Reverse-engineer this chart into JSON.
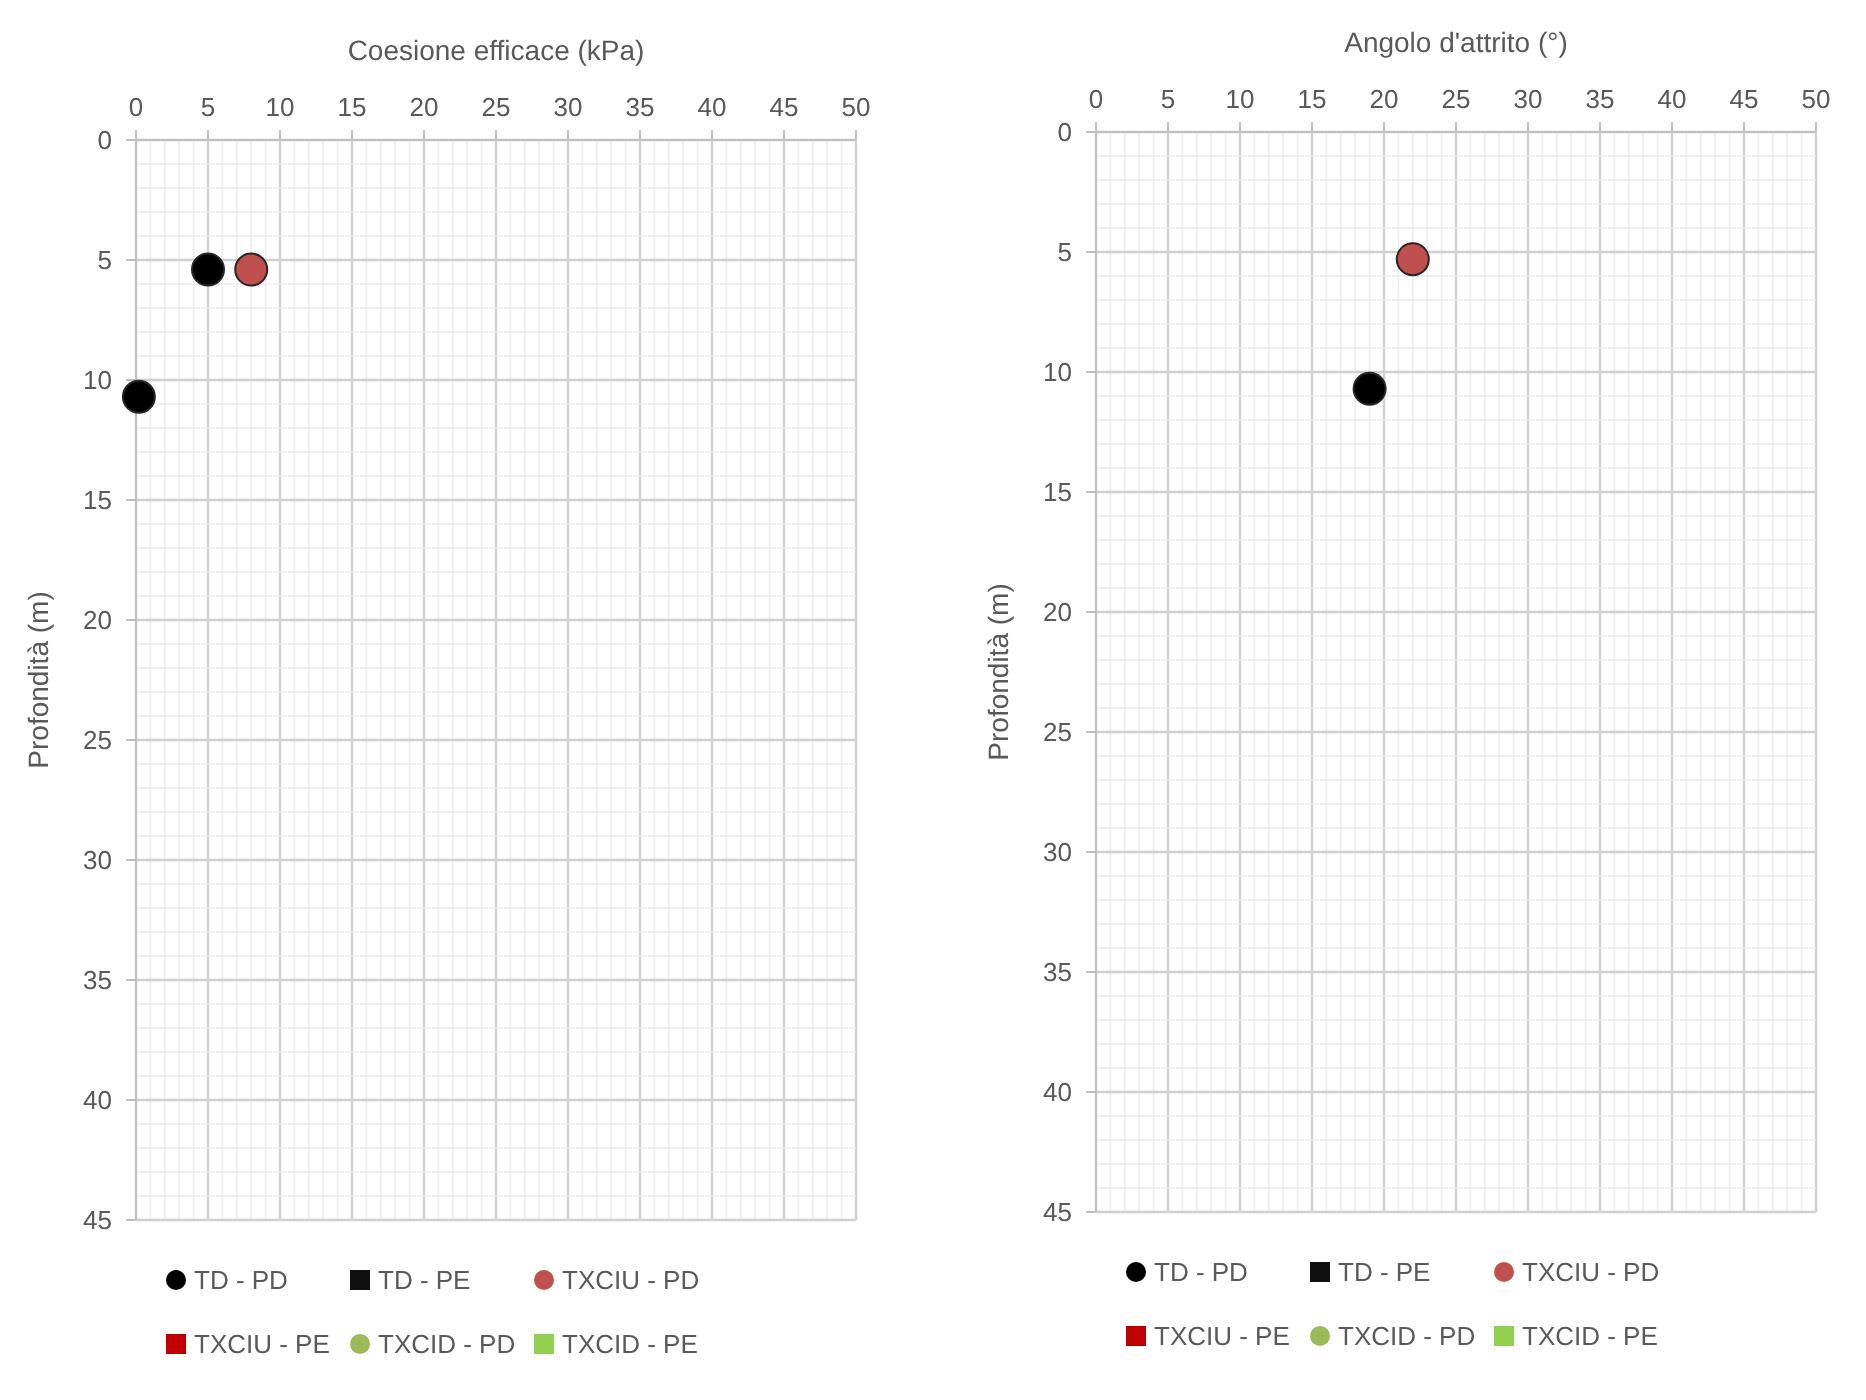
{
  "chart_data": [
    {
      "type": "scatter",
      "xlabel": "Coesione  efficace (kPa)",
      "ylabel": "Profondità (m)",
      "xlim": [
        0,
        50
      ],
      "ylim": [
        45,
        0
      ],
      "xticks": [
        0,
        {
          "value": 1,
          "label": null
        },
        {
          "value": 2,
          "label": null
        },
        {
          "value": 3,
          "label": null
        },
        {
          "value": 4,
          "label": null
        },
        5,
        {
          "value": 6,
          "label": null
        },
        {
          "value": 7,
          "label": null
        },
        {
          "value": 8,
          "label": null
        },
        {
          "value": 9,
          "label": null
        },
        10,
        {
          "value": 11,
          "label": null
        },
        {
          "value": 12,
          "label": null
        },
        {
          "value": 13,
          "label": null
        },
        {
          "value": 14,
          "label": null
        },
        15,
        {
          "value": 16,
          "label": null
        },
        {
          "value": 17,
          "label": null
        },
        {
          "value": 18,
          "label": null
        },
        {
          "value": 19,
          "label": null
        },
        20,
        {
          "value": 21,
          "label": null
        },
        {
          "value": 22,
          "label": null
        },
        {
          "value": 23,
          "label": null
        },
        {
          "value": 24,
          "label": null
        },
        25,
        {
          "value": 26,
          "label": null
        },
        {
          "value": 27,
          "label": null
        },
        {
          "value": 28,
          "label": null
        },
        {
          "value": 29,
          "label": null
        },
        30,
        {
          "value": 31,
          "label": null
        },
        {
          "value": 32,
          "label": null
        },
        {
          "value": 33,
          "label": null
        },
        {
          "value": 34,
          "label": null
        },
        35,
        {
          "value": 36,
          "label": null
        },
        {
          "value": 37,
          "label": null
        },
        {
          "value": 38,
          "label": null
        },
        {
          "value": 39,
          "label": null
        },
        40,
        {
          "value": 41,
          "label": null
        },
        {
          "value": 42,
          "label": null
        },
        {
          "value": 43,
          "label": null
        },
        {
          "value": 44,
          "label": null
        },
        45,
        {
          "value": 46,
          "label": null
        },
        {
          "value": 47,
          "label": null
        },
        {
          "value": 48,
          "label": null
        },
        {
          "value": 49,
          "label": null
        },
        50
      ],
      "yticks": [
        0,
        {
          "value": 1,
          "label": null
        },
        {
          "value": 2,
          "label": null
        },
        {
          "value": 3,
          "label": null
        },
        {
          "value": 4,
          "label": null
        },
        5,
        {
          "value": 6,
          "label": null
        },
        {
          "value": 7,
          "label": null
        },
        {
          "value": 8,
          "label": null
        },
        {
          "value": 9,
          "label": null
        },
        10,
        {
          "value": 11,
          "label": null
        },
        {
          "value": 12,
          "label": null
        },
        {
          "value": 13,
          "label": null
        },
        {
          "value": 14,
          "label": null
        },
        15,
        {
          "value": 16,
          "label": null
        },
        {
          "value": 17,
          "label": null
        },
        {
          "value": 18,
          "label": null
        },
        {
          "value": 19,
          "label": null
        },
        20,
        {
          "value": 21,
          "label": null
        },
        {
          "value": 22,
          "label": null
        },
        {
          "value": 23,
          "label": null
        },
        {
          "value": 24,
          "label": null
        },
        25,
        {
          "value": 26,
          "label": null
        },
        {
          "value": 27,
          "label": null
        },
        {
          "value": 28,
          "label": null
        },
        {
          "value": 29,
          "label": null
        },
        30,
        {
          "value": 31,
          "label": null
        },
        {
          "value": 32,
          "label": null
        },
        {
          "value": 33,
          "label": null
        },
        {
          "value": 34,
          "label": null
        },
        35,
        {
          "value": 36,
          "label": null
        },
        {
          "value": 37,
          "label": null
        },
        {
          "value": 38,
          "label": null
        },
        {
          "value": 39,
          "label": null
        },
        40,
        {
          "value": 41,
          "label": null
        },
        {
          "value": 42,
          "label": null
        },
        {
          "value": 43,
          "label": null
        },
        {
          "value": 44,
          "label": null
        },
        45
      ],
      "grid": true,
      "legend": "bottom",
      "series": [
        {
          "name": "TD - PD",
          "color": "#000000",
          "marker": "circle",
          "x": [
            5,
            0.2
          ],
          "values": [
            5.4,
            10.7
          ]
        },
        {
          "name": "TD - PE",
          "color": "#111111",
          "marker": "square"
        },
        {
          "name": "TXCIU - PD",
          "color": "#c0504d",
          "marker": "circle",
          "x": [
            8
          ],
          "values": [
            5.4
          ]
        },
        {
          "name": "TXCIU - PE",
          "color": "#c00000",
          "marker": "square"
        },
        {
          "name": "TXCID - PD",
          "color": "#9bbb59",
          "marker": "circle"
        },
        {
          "name": "TXCID - PE",
          "color": "#92d050",
          "marker": "square"
        }
      ]
    },
    {
      "type": "scatter",
      "xlabel": "Angolo d'attrito (°)",
      "ylabel": "Profondità (m)",
      "xlim": [
        0,
        50
      ],
      "ylim": [
        45,
        0
      ],
      "xticks": [
        0,
        {
          "value": 1,
          "label": null
        },
        {
          "value": 2,
          "label": null
        },
        {
          "value": 3,
          "label": null
        },
        {
          "value": 4,
          "label": null
        },
        5,
        {
          "value": 6,
          "label": null
        },
        {
          "value": 7,
          "label": null
        },
        {
          "value": 8,
          "label": null
        },
        {
          "value": 9,
          "label": null
        },
        10,
        {
          "value": 11,
          "label": null
        },
        {
          "value": 12,
          "label": null
        },
        {
          "value": 13,
          "label": null
        },
        {
          "value": 14,
          "label": null
        },
        15,
        {
          "value": 16,
          "label": null
        },
        {
          "value": 17,
          "label": null
        },
        {
          "value": 18,
          "label": null
        },
        {
          "value": 19,
          "label": null
        },
        20,
        {
          "value": 21,
          "label": null
        },
        {
          "value": 22,
          "label": null
        },
        {
          "value": 23,
          "label": null
        },
        {
          "value": 24,
          "label": null
        },
        25,
        {
          "value": 26,
          "label": null
        },
        {
          "value": 27,
          "label": null
        },
        {
          "value": 28,
          "label": null
        },
        {
          "value": 29,
          "label": null
        },
        30,
        {
          "value": 31,
          "label": null
        },
        {
          "value": 32,
          "label": null
        },
        {
          "value": 33,
          "label": null
        },
        {
          "value": 34,
          "label": null
        },
        35,
        {
          "value": 36,
          "label": null
        },
        {
          "value": 37,
          "label": null
        },
        {
          "value": 38,
          "label": null
        },
        {
          "value": 39,
          "label": null
        },
        40,
        {
          "value": 41,
          "label": null
        },
        {
          "value": 42,
          "label": null
        },
        {
          "value": 43,
          "label": null
        },
        {
          "value": 44,
          "label": null
        },
        45,
        {
          "value": 46,
          "label": null
        },
        {
          "value": 47,
          "label": null
        },
        {
          "value": 48,
          "label": null
        },
        {
          "value": 49,
          "label": null
        },
        50
      ],
      "yticks": [
        0,
        {
          "value": 1,
          "label": null
        },
        {
          "value": 2,
          "label": null
        },
        {
          "value": 3,
          "label": null
        },
        {
          "value": 4,
          "label": null
        },
        5,
        {
          "value": 6,
          "label": null
        },
        {
          "value": 7,
          "label": null
        },
        {
          "value": 8,
          "label": null
        },
        {
          "value": 9,
          "label": null
        },
        10,
        {
          "value": 11,
          "label": null
        },
        {
          "value": 12,
          "label": null
        },
        {
          "value": 13,
          "label": null
        },
        {
          "value": 14,
          "label": null
        },
        15,
        {
          "value": 16,
          "label": null
        },
        {
          "value": 17,
          "label": null
        },
        {
          "value": 18,
          "label": null
        },
        {
          "value": 19,
          "label": null
        },
        20,
        {
          "value": 21,
          "label": null
        },
        {
          "value": 22,
          "label": null
        },
        {
          "value": 23,
          "label": null
        },
        {
          "value": 24,
          "label": null
        },
        25,
        {
          "value": 26,
          "label": null
        },
        {
          "value": 27,
          "label": null
        },
        {
          "value": 28,
          "label": null
        },
        {
          "value": 29,
          "label": null
        },
        30,
        {
          "value": 31,
          "label": null
        },
        {
          "value": 32,
          "label": null
        },
        {
          "value": 33,
          "label": null
        },
        {
          "value": 34,
          "label": null
        },
        35,
        {
          "value": 36,
          "label": null
        },
        {
          "value": 37,
          "label": null
        },
        {
          "value": 38,
          "label": null
        },
        {
          "value": 39,
          "label": null
        },
        40,
        {
          "value": 41,
          "label": null
        },
        {
          "value": 42,
          "label": null
        },
        {
          "value": 43,
          "label": null
        },
        {
          "value": 44,
          "label": null
        },
        45
      ],
      "grid": true,
      "legend": "bottom",
      "series": [
        {
          "name": "TD - PD",
          "color": "#000000",
          "marker": "circle",
          "x": [
            19
          ],
          "values": [
            10.7
          ]
        },
        {
          "name": "TD - PE",
          "color": "#111111",
          "marker": "square"
        },
        {
          "name": "TXCIU - PD",
          "color": "#c0504d",
          "marker": "circle",
          "x": [
            22
          ],
          "values": [
            5.3
          ]
        },
        {
          "name": "TXCIU - PE",
          "color": "#c00000",
          "marker": "square"
        },
        {
          "name": "TXCID - PD",
          "color": "#9bbb59",
          "marker": "circle"
        },
        {
          "name": "TXCID - PE",
          "color": "#92d050",
          "marker": "square"
        }
      ]
    }
  ]
}
